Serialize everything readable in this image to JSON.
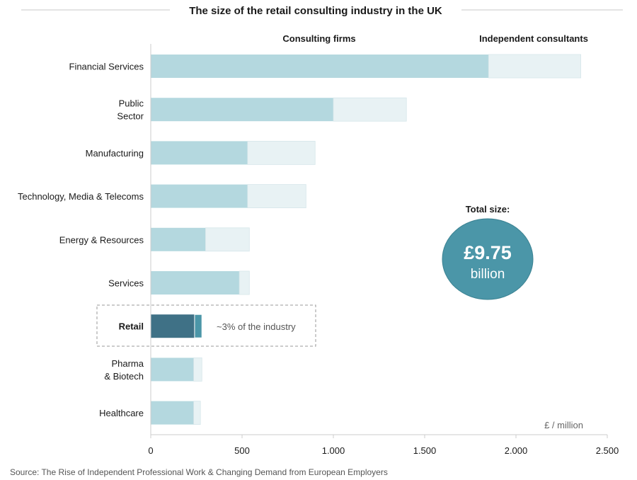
{
  "chart_data": {
    "type": "bar",
    "orientation": "horizontal",
    "stacked": true,
    "title": "The size of the retail consulting industry in the UK",
    "categories": [
      "Financial Services",
      "Public\nSector",
      "Manufacturing",
      "Technology, Media & Telecoms",
      "Energy & Resources",
      "Services",
      "Retail",
      "Pharma\n& Biotech",
      "Healthcare"
    ],
    "highlight_category": "Retail",
    "series": [
      {
        "name": "Consulting firms",
        "values": [
          1850,
          1000,
          530,
          530,
          300,
          485,
          240,
          235,
          235
        ]
      },
      {
        "name": "Independent consultants",
        "values": [
          505,
          400,
          370,
          320,
          240,
          55,
          40,
          45,
          37
        ]
      }
    ],
    "x_ticks": [
      "0",
      "500",
      "1.000",
      "1.500",
      "2.000",
      "2.500"
    ],
    "xlim": [
      0,
      2500
    ],
    "unit_label": "£ / million",
    "legend_position": "top",
    "grid": false,
    "annotations": {
      "retail_note": "~3% of the industry",
      "total_label": "Total size:",
      "total_value": "£9.75",
      "total_unit": "billion"
    },
    "source": "Source: The Rise of Independent Professional Work & Changing Demand from European Employers",
    "colors": {
      "consulting": "#b4d8df",
      "independent": "#e8f2f4",
      "retail_consulting": "#3f7186",
      "retail_independent": "#4b96a8",
      "circle": "#4b96a8",
      "axis": "#cccccc"
    }
  }
}
